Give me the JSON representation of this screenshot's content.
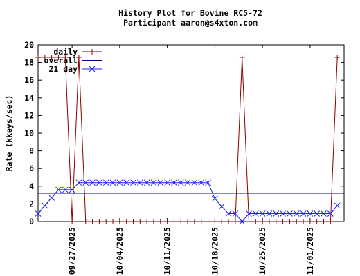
{
  "chart_data": {
    "type": "line",
    "title": "History Plot for Bovine RC5-72",
    "subtitle": "Participant aaron@s4xton.com",
    "xlabel": "",
    "ylabel": "Rate (kkeys/sec)",
    "xlim": [
      "2025-09-22",
      "2025-11-06"
    ],
    "ylim": [
      0,
      20
    ],
    "yticks": [
      0,
      2,
      4,
      6,
      8,
      10,
      12,
      14,
      16,
      18,
      20
    ],
    "xticks": [
      "09/27/2025",
      "10/04/2025",
      "10/11/2025",
      "10/18/2025",
      "10/25/2025",
      "11/01/2025"
    ],
    "grid": false,
    "legend_position": "top-left",
    "series": [
      {
        "name": "daily",
        "color": "#8b0000",
        "marker": "plus",
        "points": [
          [
            "2025-09-22",
            18.6
          ],
          [
            "2025-09-23",
            18.6
          ],
          [
            "2025-09-24",
            18.6
          ],
          [
            "2025-09-25",
            18.6
          ],
          [
            "2025-09-26",
            18.6
          ],
          [
            "2025-09-27",
            0
          ],
          [
            "2025-09-28",
            18.6
          ],
          [
            "2025-09-29",
            0
          ],
          [
            "2025-09-30",
            0
          ],
          [
            "2025-10-01",
            0
          ],
          [
            "2025-10-02",
            0
          ],
          [
            "2025-10-03",
            0
          ],
          [
            "2025-10-04",
            0
          ],
          [
            "2025-10-05",
            0
          ],
          [
            "2025-10-06",
            0
          ],
          [
            "2025-10-07",
            0
          ],
          [
            "2025-10-08",
            0
          ],
          [
            "2025-10-09",
            0
          ],
          [
            "2025-10-10",
            0
          ],
          [
            "2025-10-11",
            0
          ],
          [
            "2025-10-12",
            0
          ],
          [
            "2025-10-13",
            0
          ],
          [
            "2025-10-14",
            0
          ],
          [
            "2025-10-15",
            0
          ],
          [
            "2025-10-16",
            0
          ],
          [
            "2025-10-17",
            0
          ],
          [
            "2025-10-18",
            0
          ],
          [
            "2025-10-19",
            0
          ],
          [
            "2025-10-20",
            0
          ],
          [
            "2025-10-21",
            0
          ],
          [
            "2025-10-22",
            18.6
          ],
          [
            "2025-10-23",
            0
          ],
          [
            "2025-10-24",
            0
          ],
          [
            "2025-10-25",
            0
          ],
          [
            "2025-10-26",
            0
          ],
          [
            "2025-10-27",
            0
          ],
          [
            "2025-10-28",
            0
          ],
          [
            "2025-10-29",
            0
          ],
          [
            "2025-10-30",
            0
          ],
          [
            "2025-10-31",
            0
          ],
          [
            "2025-11-01",
            0
          ],
          [
            "2025-11-02",
            0
          ],
          [
            "2025-11-03",
            0
          ],
          [
            "2025-11-04",
            0
          ],
          [
            "2025-11-05",
            18.6
          ]
        ]
      },
      {
        "name": "overall",
        "color": "#00008b",
        "marker": "none",
        "points": [
          [
            "2025-09-22",
            3.2
          ],
          [
            "2025-11-06",
            3.2
          ]
        ]
      },
      {
        "name": "21 day",
        "color": "#1f1fff",
        "marker": "cross",
        "points": [
          [
            "2025-09-22",
            0.9
          ],
          [
            "2025-09-23",
            1.8
          ],
          [
            "2025-09-24",
            2.7
          ],
          [
            "2025-09-25",
            3.6
          ],
          [
            "2025-09-26",
            3.6
          ],
          [
            "2025-09-27",
            3.6
          ],
          [
            "2025-09-28",
            4.4
          ],
          [
            "2025-09-29",
            4.4
          ],
          [
            "2025-09-30",
            4.4
          ],
          [
            "2025-10-01",
            4.4
          ],
          [
            "2025-10-02",
            4.4
          ],
          [
            "2025-10-03",
            4.4
          ],
          [
            "2025-10-04",
            4.4
          ],
          [
            "2025-10-05",
            4.4
          ],
          [
            "2025-10-06",
            4.4
          ],
          [
            "2025-10-07",
            4.4
          ],
          [
            "2025-10-08",
            4.4
          ],
          [
            "2025-10-09",
            4.4
          ],
          [
            "2025-10-10",
            4.4
          ],
          [
            "2025-10-11",
            4.4
          ],
          [
            "2025-10-12",
            4.4
          ],
          [
            "2025-10-13",
            4.4
          ],
          [
            "2025-10-14",
            4.4
          ],
          [
            "2025-10-15",
            4.4
          ],
          [
            "2025-10-16",
            4.4
          ],
          [
            "2025-10-17",
            4.4
          ],
          [
            "2025-10-18",
            2.6
          ],
          [
            "2025-10-19",
            1.7
          ],
          [
            "2025-10-20",
            0.9
          ],
          [
            "2025-10-21",
            0.9
          ],
          [
            "2025-10-22",
            0
          ],
          [
            "2025-10-23",
            0.9
          ],
          [
            "2025-10-24",
            0.9
          ],
          [
            "2025-10-25",
            0.9
          ],
          [
            "2025-10-26",
            0.9
          ],
          [
            "2025-10-27",
            0.9
          ],
          [
            "2025-10-28",
            0.9
          ],
          [
            "2025-10-29",
            0.9
          ],
          [
            "2025-10-30",
            0.9
          ],
          [
            "2025-10-31",
            0.9
          ],
          [
            "2025-11-01",
            0.9
          ],
          [
            "2025-11-02",
            0.9
          ],
          [
            "2025-11-03",
            0.9
          ],
          [
            "2025-11-04",
            0.9
          ],
          [
            "2025-11-05",
            1.8
          ]
        ]
      }
    ]
  }
}
